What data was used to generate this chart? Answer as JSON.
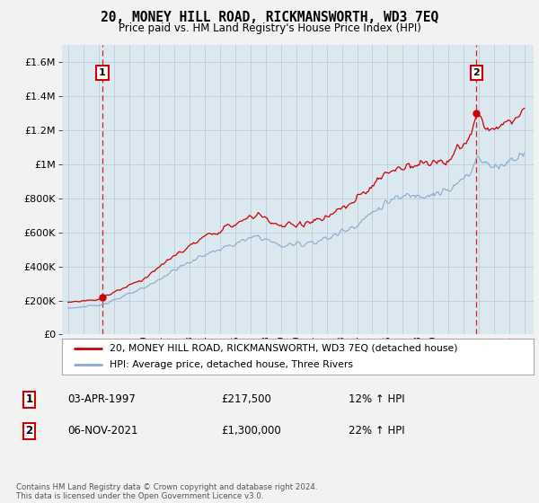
{
  "title": "20, MONEY HILL ROAD, RICKMANSWORTH, WD3 7EQ",
  "subtitle": "Price paid vs. HM Land Registry's House Price Index (HPI)",
  "legend_label1": "20, MONEY HILL ROAD, RICKMANSWORTH, WD3 7EQ (detached house)",
  "legend_label2": "HPI: Average price, detached house, Three Rivers",
  "annotation1_date": "03-APR-1997",
  "annotation1_price": "£217,500",
  "annotation1_hpi": "12% ↑ HPI",
  "annotation2_date": "06-NOV-2021",
  "annotation2_price": "£1,300,000",
  "annotation2_hpi": "22% ↑ HPI",
  "footnote": "Contains HM Land Registry data © Crown copyright and database right 2024.\nThis data is licensed under the Open Government Licence v3.0.",
  "line1_color": "#cc0000",
  "line2_color": "#88aacc",
  "vline_color": "#cc0000",
  "fig_bg_color": "#f0f0f0",
  "plot_bg_color": "#dce8f0",
  "grid_color": "#c0ccd8",
  "annotation_box_color": "#cc0000",
  "ylim_min": 0,
  "ylim_max": 1700000,
  "purchase1_year": 1997.25,
  "purchase1_value": 217500,
  "purchase2_year": 2021.85,
  "purchase2_value": 1300000,
  "xmin": 1995,
  "xmax": 2025
}
